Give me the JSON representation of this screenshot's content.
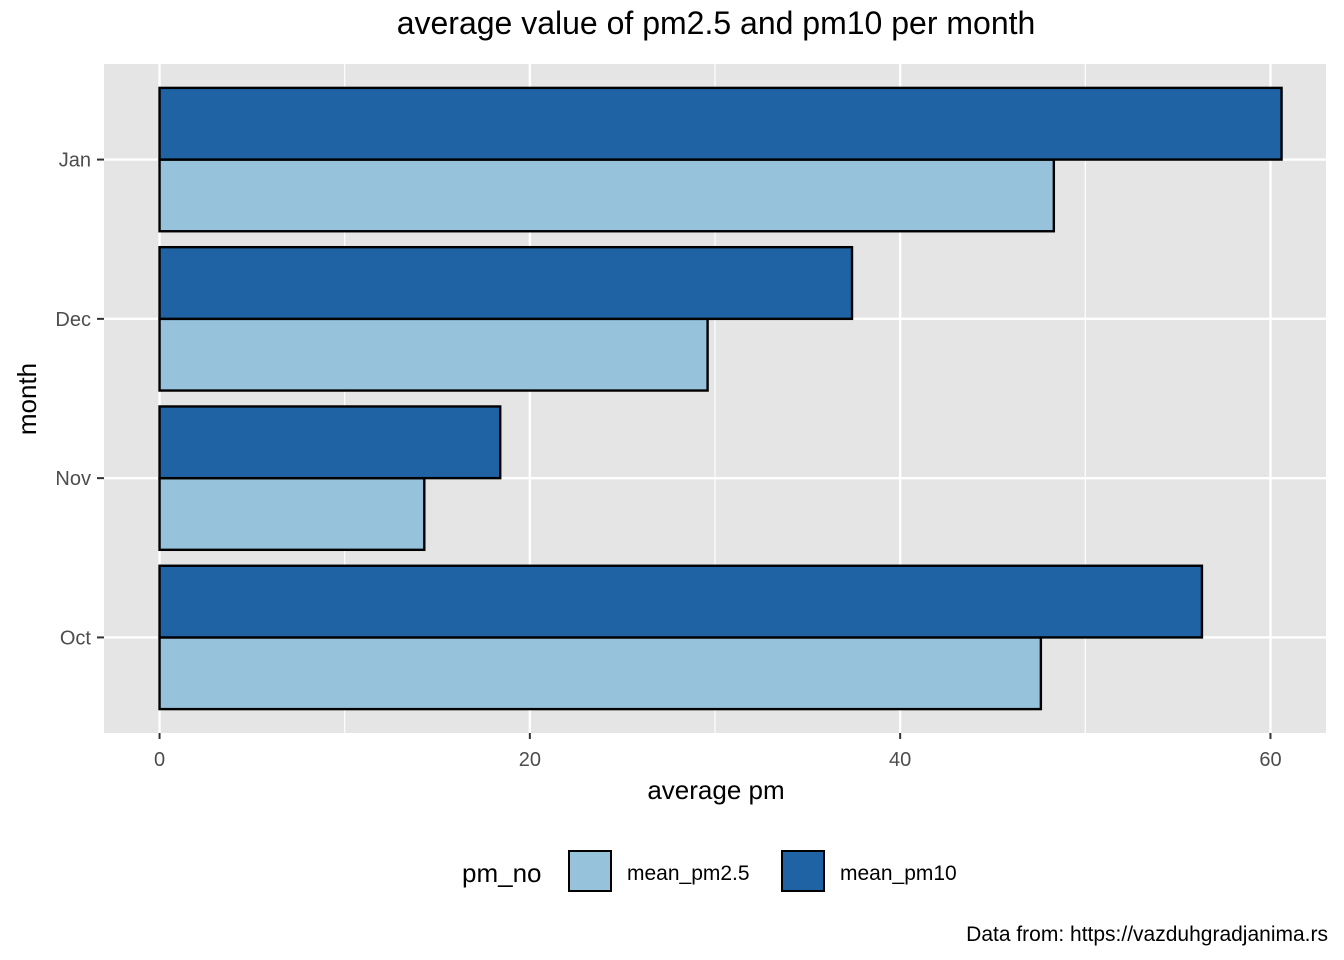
{
  "chart_data": {
    "type": "bar",
    "orientation": "horizontal",
    "title": "average value of pm2.5 and pm10 per month",
    "xlabel": "average pm",
    "ylabel": "month",
    "categories": [
      "Oct",
      "Nov",
      "Dec",
      "Jan"
    ],
    "series": [
      {
        "name": "mean_pm2.5",
        "values": [
          47.6,
          14.3,
          29.6,
          48.3
        ],
        "color": "#96c2db"
      },
      {
        "name": "mean_pm10",
        "values": [
          56.3,
          18.4,
          37.4,
          60.6
        ],
        "color": "#1f63a5"
      }
    ],
    "xlim": [
      -3,
      63
    ],
    "x_ticks": [
      0,
      20,
      40,
      60
    ],
    "x_tick_labels": [
      "0",
      "20",
      "40",
      "60"
    ],
    "grid": true,
    "panel_background": "#e5e5e5",
    "bar_outline": "#000000",
    "legend": {
      "title": "pm_no",
      "position": "bottom",
      "entries": [
        "mean_pm2.5",
        "mean_pm10"
      ]
    },
    "caption": "Data from: https://vazduhgradjanima.rs"
  }
}
